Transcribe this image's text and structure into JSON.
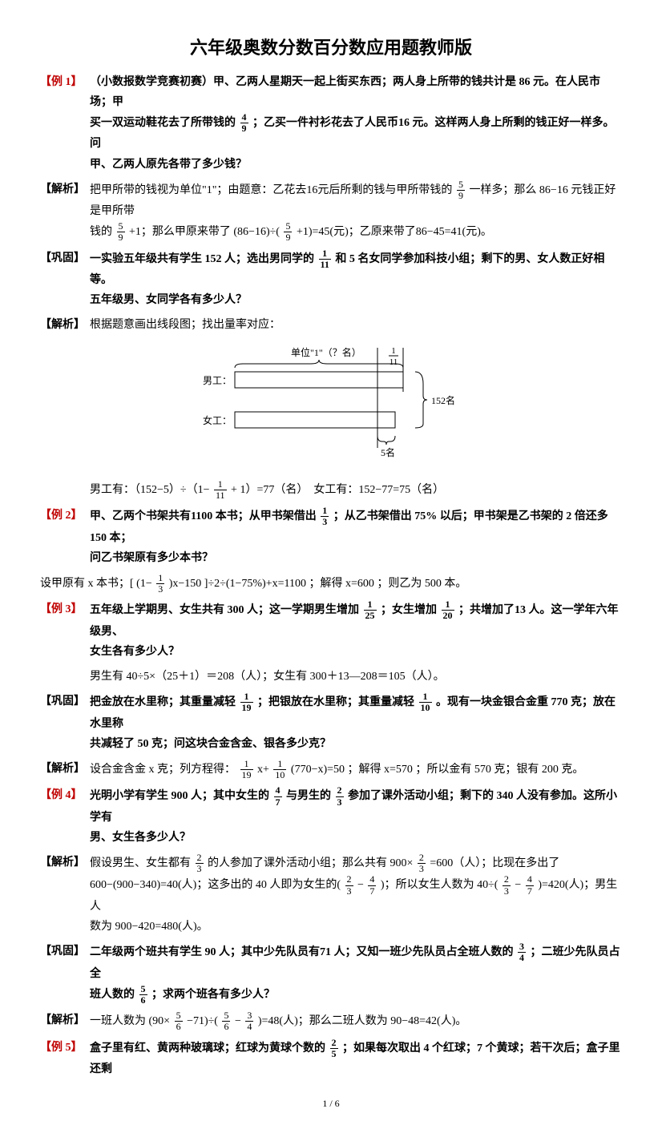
{
  "title": "六年级奥数分数百分数应用题教师版",
  "footer": "1 / 6",
  "colors": {
    "red": "#c00000",
    "black": "#000000",
    "bg": "#ffffff"
  },
  "items": [
    {
      "tag": "【例 1】",
      "tag_color": "red",
      "lines": [
        "（小数报数学竞赛初赛）甲、乙两人星期天一起上街买东西；两人身上所带的钱共计是 86 元。在人民市场；甲",
        "买一双运动鞋花去了所带钱的 4/9 ；乙买一件衬衫花去了人民币16 元。这样两人身上所剩的钱正好一样多。问",
        "甲、乙两人原先各带了多少钱？"
      ],
      "bold": true
    },
    {
      "tag": "【解析】",
      "tag_color": "black",
      "lines": [
        "把甲所带的钱视为单位\"1\"；由题意：乙花去16元后所剩的钱与甲所带钱的 5/9 一样多；那么 86−16 元钱正好是甲所带",
        "钱的 5/9 +1；那么甲原来带了 (86−16)÷( 5/9 +1)=45(元)；乙原来带了86−45=41(元)。"
      ],
      "bold": false
    },
    {
      "tag": "【巩固】",
      "tag_color": "black",
      "lines": [
        "一实验五年级共有学生 152 人；选出男同学的 1/11 和 5 名女同学参加科技小组；剩下的男、女人数正好相等。",
        "五年级男、女同学各有多少人？"
      ],
      "bold": true
    },
    {
      "tag": "【解析】",
      "tag_color": "black",
      "lines": [
        "根据题意画出线段图；找出量率对应："
      ],
      "bold": false,
      "diagram": true
    },
    {
      "calc": "男工有：（152−5）÷（1− 1/11 + 1）=77（名）　女工有：152−77=75（名）"
    },
    {
      "tag": "【例 2】",
      "tag_color": "red",
      "lines": [
        "甲、乙两个书架共有1100 本书；从甲书架借出 1/3 ；从乙书架借出 75% 以后；甲书架是乙书架的 2 倍还多 150 本；",
        "问乙书架原有多少本书？"
      ],
      "bold": true
    },
    {
      "calc_plain": "设甲原有 x 本书；[ (1− 1/3 )x−150 ]÷2÷(1−75%)+x=1100 ；解得 x=600 ；则乙为 500 本。"
    },
    {
      "tag": "【例 3】",
      "tag_color": "red",
      "lines": [
        "五年级上学期男、女生共有 300 人；这一学期男生增加 1/25 ；女生增加 1/20 ；共增加了13 人。这一学年六年级男、",
        "女生各有多少人？"
      ],
      "bold": true
    },
    {
      "indent_plain": "男生有 40÷5×（25＋1）＝208（人）；女生有 300＋13—208＝105（人）。"
    },
    {
      "tag": "【巩固】",
      "tag_color": "black",
      "lines": [
        "把金放在水里称；其重量减轻 1/19 ；把银放在水里称；其重量减轻 1/10 。现有一块金银合金重 770 克；放在水里称",
        "共减轻了 50 克；问这块合金含金、银各多少克？"
      ],
      "bold": true
    },
    {
      "tag": "【解析】",
      "tag_color": "black",
      "lines": [
        "设合金含金 x 克；列方程得： 1/19 x+ 1/10 (770−x)=50 ；解得 x=570 ；所以金有 570 克；银有 200 克。"
      ],
      "bold": false
    },
    {
      "tag": "【例 4】",
      "tag_color": "red",
      "lines": [
        "光明小学有学生 900 人；其中女生的 4/7 与男生的 2/3 参加了课外活动小组；剩下的 340 人没有参加。这所小学有",
        "男、女生各多少人？"
      ],
      "bold": true
    },
    {
      "tag": "【解析】",
      "tag_color": "black",
      "lines": [
        "假设男生、女生都有 2/3 的人参加了课外活动小组；那么共有 900× 2/3 =600（人）；比现在多出了",
        "600−(900−340)=40(人)；这多出的 40 人即为女生的( 2/3 − 4/7 )；所以女生人数为 40÷( 2/3 − 4/7 )=420(人)；男生人",
        "数为 900−420=480(人)。"
      ],
      "bold": false
    },
    {
      "tag": "【巩固】",
      "tag_color": "black",
      "lines": [
        "二年级两个班共有学生 90 人；其中少先队员有71 人；又知一班少先队员占全班人数的 3/4 ；二班少先队员占全",
        "班人数的 5/6 ；求两个班各有多少人？"
      ],
      "bold": true
    },
    {
      "tag": "【解析】",
      "tag_color": "black",
      "lines": [
        "一班人数为 (90× 5/6 −71)÷( 5/6 − 3/4 )=48(人)；那么二班人数为 90−48=42(人)。"
      ],
      "bold": false
    },
    {
      "tag": "【例 5】",
      "tag_color": "red",
      "lines": [
        "盒子里有红、黄两种玻璃球；红球为黄球个数的 2/5 ；如果每次取出 4 个红球；7 个黄球；若干次后；盒子里还剩"
      ],
      "bold": true
    }
  ],
  "diagram": {
    "unit_label": "单位\"1\"（？名）",
    "male": "男工：",
    "female": "女工：",
    "frac_top": "1",
    "frac_bot": "11",
    "total": "152名",
    "five": "5名"
  }
}
